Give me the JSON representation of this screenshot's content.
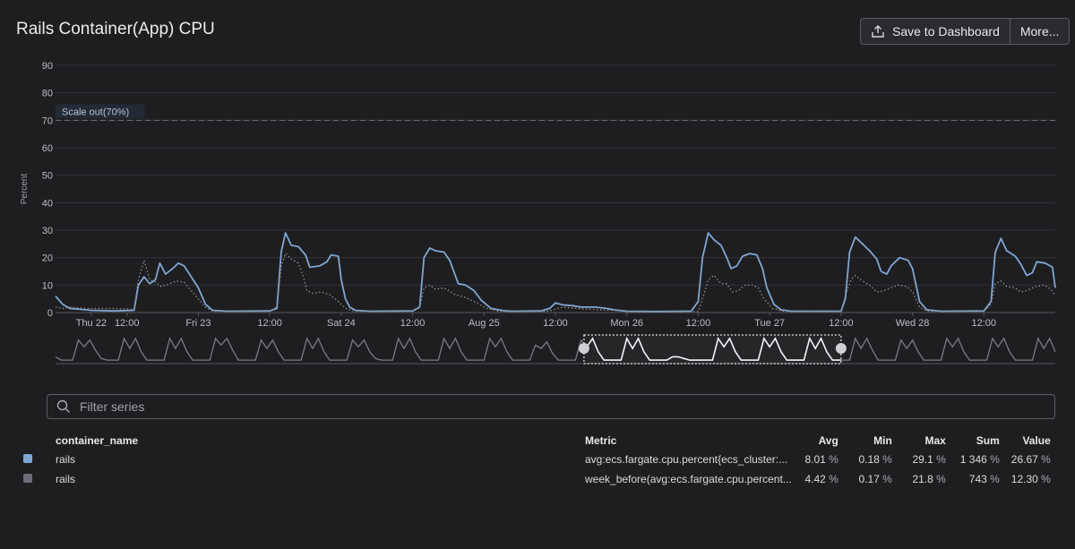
{
  "header": {
    "title": "Rails Container(App) CPU",
    "save_label": "Save to Dashboard",
    "more_label": "More..."
  },
  "filter": {
    "placeholder": "Filter series"
  },
  "table": {
    "columns": [
      "container_name",
      "Metric",
      "Avg",
      "Min",
      "Max",
      "Sum",
      "Value"
    ],
    "rows": [
      {
        "color": "#7fa6d4",
        "name": "rails",
        "metric": "avg:ecs.fargate.cpu.percent{ecs_cluster:...",
        "avg": "8.01",
        "min": "0.18",
        "max": "29.1",
        "sum": "1 346",
        "value": "26.67",
        "avg_unit": "%",
        "min_unit": "%",
        "max_unit": "%",
        "sum_unit": "%",
        "value_unit": "%"
      },
      {
        "color": "#6e6e7a",
        "name": "rails",
        "metric": "week_before(avg:ecs.fargate.cpu.percent...",
        "avg": "4.42",
        "min": "0.17",
        "max": "21.8",
        "sum": "743",
        "value": "12.30",
        "avg_unit": "%",
        "min_unit": "%",
        "max_unit": "%",
        "sum_unit": "%",
        "value_unit": "%"
      }
    ]
  },
  "chart_data": {
    "type": "line",
    "ylabel": "Percent",
    "ylim": [
      0,
      90
    ],
    "yticks": [
      0,
      10,
      20,
      30,
      40,
      50,
      60,
      70,
      80,
      90
    ],
    "grid": true,
    "xlim": [
      0,
      7
    ],
    "xticks": [
      {
        "x": 0.25,
        "label": "Thu 22"
      },
      {
        "x": 0.5,
        "label": "12:00"
      },
      {
        "x": 1.0,
        "label": "Fri 23"
      },
      {
        "x": 1.5,
        "label": "12:00"
      },
      {
        "x": 2.0,
        "label": "Sat 24"
      },
      {
        "x": 2.5,
        "label": "12:00"
      },
      {
        "x": 3.0,
        "label": "Aug 25"
      },
      {
        "x": 3.5,
        "label": "12:00"
      },
      {
        "x": 4.0,
        "label": "Mon 26"
      },
      {
        "x": 4.5,
        "label": "12:00"
      },
      {
        "x": 5.0,
        "label": "Tue 27"
      },
      {
        "x": 5.5,
        "label": "12:00"
      },
      {
        "x": 6.0,
        "label": "Wed 28"
      },
      {
        "x": 6.5,
        "label": "12:00"
      }
    ],
    "threshold": {
      "value": 70,
      "label": "Scale out(70%)"
    },
    "series": [
      {
        "color": "#7fa6d4",
        "style": "solid",
        "points": [
          [
            0.0,
            6
          ],
          [
            0.05,
            3
          ],
          [
            0.1,
            1.5
          ],
          [
            0.25,
            0.8
          ],
          [
            0.4,
            0.6
          ],
          [
            0.55,
            0.8
          ],
          [
            0.58,
            10
          ],
          [
            0.62,
            13
          ],
          [
            0.66,
            10.5
          ],
          [
            0.7,
            12
          ],
          [
            0.73,
            18
          ],
          [
            0.77,
            14
          ],
          [
            0.82,
            16
          ],
          [
            0.86,
            18
          ],
          [
            0.9,
            17
          ],
          [
            0.95,
            13
          ],
          [
            1.0,
            9
          ],
          [
            1.05,
            3
          ],
          [
            1.1,
            0.8
          ],
          [
            1.2,
            0.5
          ],
          [
            1.5,
            0.6
          ],
          [
            1.55,
            1.5
          ],
          [
            1.58,
            22
          ],
          [
            1.61,
            29
          ],
          [
            1.65,
            24.5
          ],
          [
            1.7,
            24
          ],
          [
            1.75,
            21
          ],
          [
            1.78,
            16.5
          ],
          [
            1.85,
            17
          ],
          [
            1.9,
            18.5
          ],
          [
            1.93,
            21
          ],
          [
            1.98,
            20.5
          ],
          [
            2.0,
            12
          ],
          [
            2.03,
            5
          ],
          [
            2.06,
            2
          ],
          [
            2.1,
            0.8
          ],
          [
            2.2,
            0.5
          ],
          [
            2.5,
            0.6
          ],
          [
            2.55,
            2
          ],
          [
            2.58,
            20
          ],
          [
            2.62,
            23.5
          ],
          [
            2.66,
            22.5
          ],
          [
            2.72,
            22
          ],
          [
            2.76,
            19
          ],
          [
            2.82,
            10.5
          ],
          [
            2.87,
            10
          ],
          [
            2.93,
            8
          ],
          [
            2.98,
            4.5
          ],
          [
            3.05,
            1.5
          ],
          [
            3.15,
            0.6
          ],
          [
            3.2,
            0.5
          ],
          [
            3.4,
            0.6
          ],
          [
            3.46,
            1.5
          ],
          [
            3.5,
            3.5
          ],
          [
            3.55,
            2.8
          ],
          [
            3.62,
            2.5
          ],
          [
            3.68,
            2.0
          ],
          [
            3.78,
            2.0
          ],
          [
            3.86,
            1.5
          ],
          [
            3.92,
            0.9
          ],
          [
            4.0,
            0.5
          ],
          [
            4.2,
            0.4
          ],
          [
            4.45,
            0.5
          ],
          [
            4.5,
            4
          ],
          [
            4.53,
            20
          ],
          [
            4.57,
            29
          ],
          [
            4.61,
            26.5
          ],
          [
            4.66,
            24.5
          ],
          [
            4.7,
            20
          ],
          [
            4.73,
            16
          ],
          [
            4.77,
            17
          ],
          [
            4.81,
            20.5
          ],
          [
            4.86,
            21.5
          ],
          [
            4.91,
            21
          ],
          [
            4.95,
            16
          ],
          [
            4.98,
            9
          ],
          [
            5.03,
            3
          ],
          [
            5.08,
            1
          ],
          [
            5.15,
            0.5
          ],
          [
            5.5,
            0.5
          ],
          [
            5.53,
            5
          ],
          [
            5.56,
            22
          ],
          [
            5.6,
            27.5
          ],
          [
            5.65,
            25
          ],
          [
            5.7,
            22.5
          ],
          [
            5.75,
            19.5
          ],
          [
            5.78,
            15
          ],
          [
            5.82,
            14
          ],
          [
            5.85,
            17
          ],
          [
            5.91,
            20
          ],
          [
            5.97,
            19
          ],
          [
            6.0,
            16
          ],
          [
            6.05,
            4
          ],
          [
            6.1,
            1
          ],
          [
            6.2,
            0.5
          ],
          [
            6.5,
            0.6
          ],
          [
            6.55,
            4
          ],
          [
            6.58,
            22
          ],
          [
            6.62,
            27
          ],
          [
            6.66,
            22.5
          ],
          [
            6.72,
            20.5
          ],
          [
            6.76,
            17.5
          ],
          [
            6.8,
            13.5
          ],
          [
            6.84,
            14.5
          ],
          [
            6.87,
            18.5
          ],
          [
            6.93,
            18
          ],
          [
            6.98,
            16.5
          ],
          [
            7.0,
            9
          ]
        ]
      },
      {
        "color": "#8a8a8e",
        "style": "dotted",
        "points": [
          [
            0.0,
            2
          ],
          [
            0.05,
            1.5
          ],
          [
            0.1,
            2
          ],
          [
            0.2,
            1.5
          ],
          [
            0.4,
            1.5
          ],
          [
            0.55,
            1.2
          ],
          [
            0.58,
            12
          ],
          [
            0.62,
            19
          ],
          [
            0.66,
            12
          ],
          [
            0.7,
            11
          ],
          [
            0.74,
            9.5
          ],
          [
            0.8,
            10.5
          ],
          [
            0.85,
            11.5
          ],
          [
            0.9,
            11
          ],
          [
            0.95,
            8
          ],
          [
            1.0,
            5
          ],
          [
            1.05,
            2
          ],
          [
            1.1,
            0.5
          ],
          [
            1.5,
            0.5
          ],
          [
            1.55,
            2
          ],
          [
            1.58,
            17
          ],
          [
            1.61,
            21.5
          ],
          [
            1.65,
            19.5
          ],
          [
            1.7,
            18
          ],
          [
            1.73,
            14
          ],
          [
            1.76,
            8
          ],
          [
            1.8,
            7
          ],
          [
            1.86,
            7.5
          ],
          [
            1.92,
            6.5
          ],
          [
            1.98,
            4
          ],
          [
            2.03,
            1.5
          ],
          [
            2.1,
            0.5
          ],
          [
            2.5,
            0.5
          ],
          [
            2.55,
            2
          ],
          [
            2.58,
            9
          ],
          [
            2.62,
            10
          ],
          [
            2.66,
            8.5
          ],
          [
            2.72,
            9
          ],
          [
            2.8,
            6.5
          ],
          [
            2.87,
            5.5
          ],
          [
            2.95,
            3.5
          ],
          [
            3.02,
            1.5
          ],
          [
            3.1,
            0.5
          ],
          [
            3.45,
            0.5
          ],
          [
            3.55,
            2
          ],
          [
            3.65,
            1.5
          ],
          [
            3.8,
            1
          ],
          [
            3.92,
            0.8
          ],
          [
            4.0,
            0.4
          ],
          [
            4.5,
            0.4
          ],
          [
            4.53,
            5
          ],
          [
            4.57,
            12
          ],
          [
            4.61,
            13.5
          ],
          [
            4.66,
            10.5
          ],
          [
            4.7,
            10.5
          ],
          [
            4.74,
            7.5
          ],
          [
            4.78,
            8
          ],
          [
            4.83,
            10
          ],
          [
            4.88,
            10
          ],
          [
            4.92,
            9
          ],
          [
            4.96,
            5
          ],
          [
            5.02,
            1.5
          ],
          [
            5.1,
            0.5
          ],
          [
            5.5,
            0.5
          ],
          [
            5.53,
            6
          ],
          [
            5.57,
            12
          ],
          [
            5.6,
            13.5
          ],
          [
            5.65,
            11.5
          ],
          [
            5.7,
            10
          ],
          [
            5.75,
            7.5
          ],
          [
            5.8,
            8
          ],
          [
            5.85,
            9
          ],
          [
            5.9,
            10
          ],
          [
            5.96,
            9.5
          ],
          [
            6.0,
            7.5
          ],
          [
            6.05,
            2
          ],
          [
            6.1,
            0.5
          ],
          [
            6.5,
            0.5
          ],
          [
            6.55,
            3
          ],
          [
            6.58,
            10.5
          ],
          [
            6.62,
            11.5
          ],
          [
            6.66,
            9.5
          ],
          [
            6.72,
            9
          ],
          [
            6.76,
            7.5
          ],
          [
            6.8,
            8
          ],
          [
            6.86,
            9.5
          ],
          [
            6.92,
            10
          ],
          [
            6.97,
            8.5
          ],
          [
            7.0,
            6
          ]
        ]
      }
    ],
    "overview": {
      "xlim": [
        0,
        14
      ],
      "selection": [
        7.4,
        11.0
      ],
      "values": [
        3,
        1,
        1,
        1,
        13,
        9,
        13,
        7,
        2,
        1,
        1,
        1,
        14,
        8,
        14,
        6,
        1,
        1,
        1,
        1,
        14,
        8,
        14,
        6,
        1,
        1,
        1,
        1,
        14,
        10,
        14,
        7,
        1,
        1,
        1,
        1,
        13,
        8,
        13,
        6,
        1,
        1,
        1,
        1,
        14,
        8,
        14,
        6,
        1,
        1,
        1,
        1,
        13,
        9,
        13,
        6,
        2,
        1,
        1,
        1,
        14,
        8,
        14,
        6,
        1,
        1,
        1,
        1,
        14,
        8,
        14,
        6,
        1,
        1,
        1,
        1,
        14,
        9,
        14,
        6,
        1,
        1,
        1,
        1,
        10,
        8,
        12,
        5,
        1,
        1,
        1,
        1,
        13,
        9,
        14,
        6,
        1,
        1,
        1,
        1,
        14,
        8,
        14,
        6,
        1,
        1,
        1,
        1,
        3,
        3,
        2,
        1,
        1,
        1,
        1,
        1,
        14,
        9,
        14,
        6,
        1,
        1,
        1,
        1,
        14,
        9,
        14,
        6,
        1,
        1,
        1,
        1,
        14,
        8,
        14,
        6,
        1,
        1,
        1,
        1,
        14,
        8,
        14,
        7,
        1,
        1,
        1,
        1,
        13,
        8,
        13,
        6,
        1,
        1,
        1,
        1,
        14,
        9,
        14,
        6,
        1,
        1,
        1,
        1,
        14,
        9,
        14,
        6,
        1,
        1,
        1,
        1,
        14,
        8,
        14,
        6
      ]
    }
  }
}
